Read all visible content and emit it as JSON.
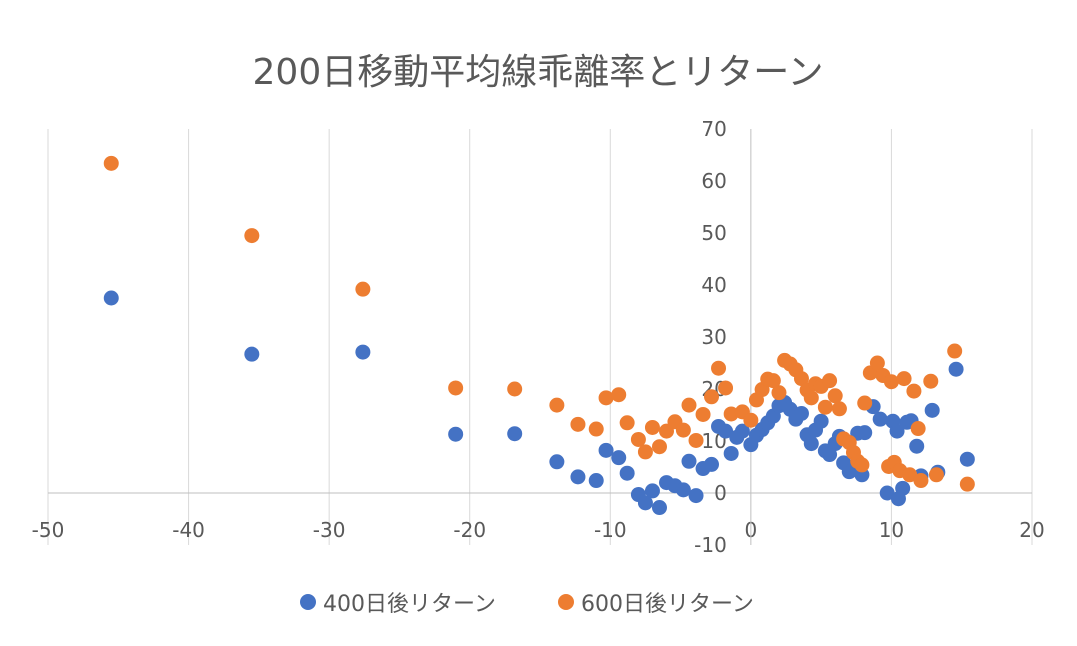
{
  "chart_data": {
    "type": "scatter",
    "title": "200日移動平均線乖離率とリターン",
    "xlim": [
      -50,
      20
    ],
    "ylim": [
      -10,
      70
    ],
    "x_ticks": [
      "-50",
      "-40",
      "-30",
      "-20",
      "-10",
      "0",
      "10",
      "20"
    ],
    "y_ticks": [
      "-10",
      "0",
      "10",
      "20",
      "30",
      "40",
      "50",
      "60",
      "70"
    ],
    "grid": "vertical",
    "legend": "bottom",
    "series": [
      {
        "name": "400日後リターン",
        "color": "#4472C4",
        "points": [
          [
            -45.5,
            37.5
          ],
          [
            -35.5,
            26.7
          ],
          [
            -27.6,
            27.1
          ],
          [
            -21,
            11.3
          ],
          [
            -16.8,
            11.4
          ],
          [
            -13.8,
            6
          ],
          [
            -12.3,
            3.1
          ],
          [
            -11,
            2.4
          ],
          [
            -10.3,
            8.2
          ],
          [
            -9.4,
            6.8
          ],
          [
            -8.8,
            3.8
          ],
          [
            -8,
            -0.3
          ],
          [
            -7.5,
            -1.9
          ],
          [
            -7,
            0.4
          ],
          [
            -6.5,
            -2.8
          ],
          [
            -6,
            2
          ],
          [
            -5.4,
            1.4
          ],
          [
            -4.8,
            0.6
          ],
          [
            -4.4,
            6.1
          ],
          [
            -3.9,
            -0.5
          ],
          [
            -3.4,
            4.7
          ],
          [
            -2.8,
            5.5
          ],
          [
            -2.3,
            12.8
          ],
          [
            -1.8,
            11.9
          ],
          [
            -1.4,
            7.6
          ],
          [
            -1,
            10.7
          ],
          [
            -0.6,
            11.9
          ],
          [
            0,
            9.3
          ],
          [
            0.4,
            11.1
          ],
          [
            0.8,
            12.2
          ],
          [
            1.2,
            13.5
          ],
          [
            1.6,
            14.8
          ],
          [
            2,
            16.8
          ],
          [
            2.4,
            17.4
          ],
          [
            2.8,
            16.1
          ],
          [
            3.2,
            14.2
          ],
          [
            3.6,
            15.3
          ],
          [
            4,
            11.2
          ],
          [
            4.3,
            9.5
          ],
          [
            4.6,
            12.1
          ],
          [
            5,
            13.8
          ],
          [
            5.3,
            8.1
          ],
          [
            5.6,
            7.4
          ],
          [
            6,
            9.5
          ],
          [
            6.3,
            10.9
          ],
          [
            6.6,
            5.8
          ],
          [
            7,
            4.1
          ],
          [
            7.3,
            4.5
          ],
          [
            7.6,
            11.5
          ],
          [
            7.9,
            3.5
          ],
          [
            8.1,
            11.6
          ],
          [
            8.7,
            16.6
          ],
          [
            9.2,
            14.2
          ],
          [
            9.7,
            0
          ],
          [
            10.1,
            13.8
          ],
          [
            10.4,
            11.9
          ],
          [
            10.5,
            -1.1
          ],
          [
            10.8,
            0.9
          ],
          [
            11.1,
            13.6
          ],
          [
            11.4,
            13.9
          ],
          [
            11.8,
            9
          ],
          [
            12.1,
            3.3
          ],
          [
            12.9,
            15.9
          ],
          [
            13.3,
            4
          ],
          [
            14.6,
            23.8
          ],
          [
            15.4,
            6.5
          ]
        ]
      },
      {
        "name": "600日後リターン",
        "color": "#ED7D31",
        "points": [
          [
            -45.5,
            63.4
          ],
          [
            -35.5,
            49.5
          ],
          [
            -27.6,
            39.2
          ],
          [
            -21,
            20.2
          ],
          [
            -16.8,
            20
          ],
          [
            -13.8,
            16.9
          ],
          [
            -12.3,
            13.2
          ],
          [
            -11,
            12.3
          ],
          [
            -10.3,
            18.3
          ],
          [
            -9.4,
            18.9
          ],
          [
            -8.8,
            13.5
          ],
          [
            -8,
            10.3
          ],
          [
            -7.5,
            7.9
          ],
          [
            -7,
            12.6
          ],
          [
            -6.5,
            8.9
          ],
          [
            -6,
            11.9
          ],
          [
            -5.4,
            13.7
          ],
          [
            -4.8,
            12.1
          ],
          [
            -4.4,
            16.9
          ],
          [
            -3.9,
            10.1
          ],
          [
            -3.4,
            15.1
          ],
          [
            -2.8,
            18.5
          ],
          [
            -2.3,
            24
          ],
          [
            -1.8,
            20.2
          ],
          [
            -1.4,
            15.2
          ],
          [
            -0.6,
            15.6
          ],
          [
            0,
            14
          ],
          [
            0.4,
            17.9
          ],
          [
            0.8,
            19.9
          ],
          [
            1.2,
            21.9
          ],
          [
            1.6,
            21.6
          ],
          [
            2,
            19.3
          ],
          [
            2.4,
            25.5
          ],
          [
            2.8,
            24.8
          ],
          [
            3.2,
            23.7
          ],
          [
            3.6,
            22
          ],
          [
            4,
            19.8
          ],
          [
            4.3,
            18.3
          ],
          [
            4.6,
            21
          ],
          [
            5,
            20.5
          ],
          [
            5.3,
            16.5
          ],
          [
            5.6,
            21.6
          ],
          [
            6,
            18.7
          ],
          [
            6.3,
            16.2
          ],
          [
            6.6,
            10.4
          ],
          [
            7,
            9.7
          ],
          [
            7.3,
            7.8
          ],
          [
            7.6,
            6.1
          ],
          [
            7.9,
            5.4
          ],
          [
            8.1,
            17.3
          ],
          [
            8.5,
            23.1
          ],
          [
            9,
            25
          ],
          [
            9.4,
            22.6
          ],
          [
            9.8,
            5.1
          ],
          [
            10,
            21.4
          ],
          [
            10.2,
            5.9
          ],
          [
            10.6,
            4.3
          ],
          [
            10.9,
            22
          ],
          [
            11.3,
            3.5
          ],
          [
            11.6,
            19.6
          ],
          [
            11.9,
            12.4
          ],
          [
            12.1,
            2.4
          ],
          [
            12.8,
            21.5
          ],
          [
            13.2,
            3.5
          ],
          [
            14.5,
            27.3
          ],
          [
            15.4,
            1.7
          ]
        ]
      }
    ]
  }
}
